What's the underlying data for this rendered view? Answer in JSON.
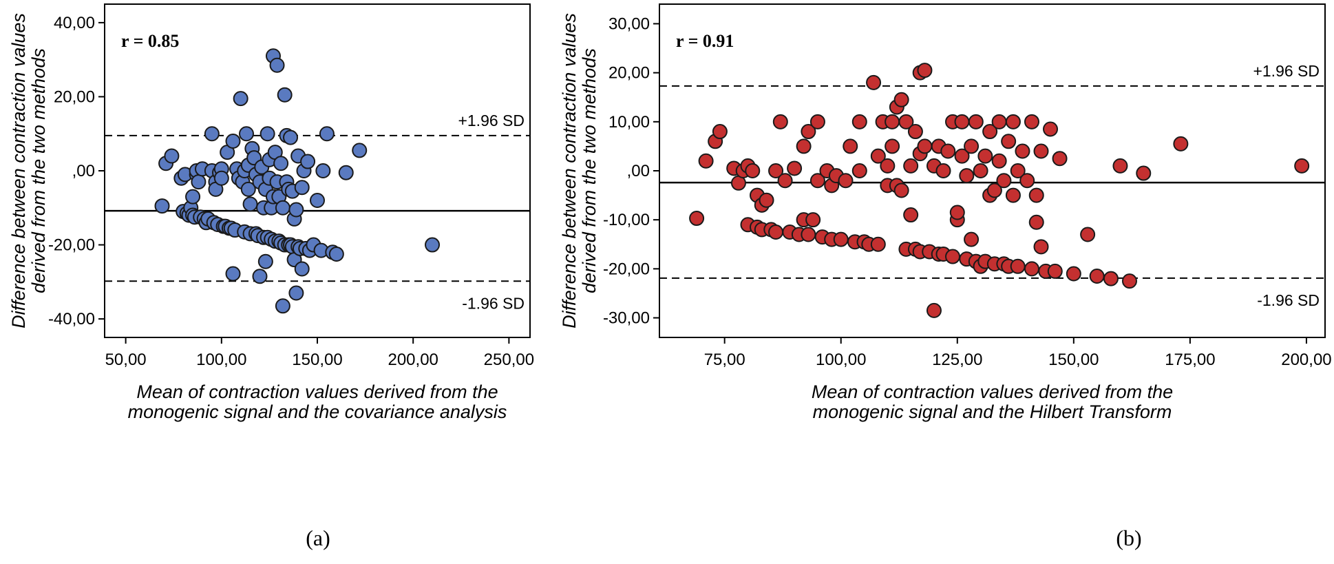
{
  "chart_data": [
    {
      "type": "scatter",
      "title": "",
      "annotation": "r = 0.85",
      "xlabel_lines": [
        "Mean of contraction values derived from the",
        "monogenic signal and the covariance analysis"
      ],
      "ylabel_lines": [
        "Difference between contraction values",
        "derived from the two methods"
      ],
      "xlim": [
        39,
        261
      ],
      "ylim": [
        -45,
        45
      ],
      "xticks": [
        50,
        100,
        150,
        200,
        250
      ],
      "xtick_labels": [
        "50,00",
        "100,00",
        "150,00",
        "200,00",
        "250,00"
      ],
      "yticks": [
        40,
        20,
        0,
        -20,
        -40
      ],
      "ytick_labels": [
        "40,00",
        "20,00",
        ",00",
        "-20,00",
        "-40,00"
      ],
      "mean_line": -10.8,
      "upper_limit": 9.5,
      "lower_limit": -29.8,
      "upper_label": "+1.96 SD",
      "lower_label": "-1.96 SD",
      "marker_color": "#5a7ac0",
      "caption": "(a)",
      "points": [
        [
          69,
          -9.5
        ],
        [
          71,
          2
        ],
        [
          74,
          4
        ],
        [
          79,
          -2
        ],
        [
          80,
          -11
        ],
        [
          81,
          -1
        ],
        [
          82,
          -11.5
        ],
        [
          83,
          -12
        ],
        [
          84,
          -10
        ],
        [
          85,
          -7
        ],
        [
          85,
          -12
        ],
        [
          86,
          -12.5
        ],
        [
          87,
          -1
        ],
        [
          87,
          0
        ],
        [
          88,
          -3
        ],
        [
          89,
          -12.5
        ],
        [
          90,
          0.5
        ],
        [
          91,
          -13
        ],
        [
          92,
          -14
        ],
        [
          93,
          -13
        ],
        [
          95,
          10
        ],
        [
          95,
          0
        ],
        [
          96,
          -14
        ],
        [
          97,
          -3
        ],
        [
          97,
          -5
        ],
        [
          98,
          -14.5
        ],
        [
          99,
          -0.5
        ],
        [
          100,
          0.5
        ],
        [
          100,
          -2
        ],
        [
          101,
          -15
        ],
        [
          102,
          -15
        ],
        [
          103,
          5
        ],
        [
          104,
          -15.5
        ],
        [
          105,
          -15.5
        ],
        [
          106,
          -27.8
        ],
        [
          106,
          8
        ],
        [
          107,
          -16
        ],
        [
          108,
          0.5
        ],
        [
          109,
          -2
        ],
        [
          110,
          19.5
        ],
        [
          111,
          -3
        ],
        [
          112,
          -16.5
        ],
        [
          112,
          0
        ],
        [
          113,
          10
        ],
        [
          114,
          -5
        ],
        [
          114,
          1.5
        ],
        [
          115,
          -17
        ],
        [
          115,
          -9
        ],
        [
          116,
          6
        ],
        [
          117,
          3.5
        ],
        [
          118,
          -17
        ],
        [
          118,
          -1
        ],
        [
          119,
          -17.5
        ],
        [
          120,
          -28.5
        ],
        [
          120,
          -3
        ],
        [
          121,
          1
        ],
        [
          122,
          -18
        ],
        [
          122,
          -10
        ],
        [
          123,
          -24.5
        ],
        [
          123,
          -5
        ],
        [
          124,
          10
        ],
        [
          124,
          -18
        ],
        [
          125,
          3
        ],
        [
          125,
          -2
        ],
        [
          126,
          -18.5
        ],
        [
          126,
          -10
        ],
        [
          127,
          -7
        ],
        [
          127,
          31
        ],
        [
          128,
          -19
        ],
        [
          128,
          5
        ],
        [
          129,
          28.5
        ],
        [
          129,
          -3
        ],
        [
          130,
          -19
        ],
        [
          130,
          -7
        ],
        [
          131,
          -19.5
        ],
        [
          131,
          2
        ],
        [
          132,
          -36.5
        ],
        [
          132,
          -10
        ],
        [
          133,
          20.5
        ],
        [
          133,
          -20
        ],
        [
          134,
          9.5
        ],
        [
          134,
          -3
        ],
        [
          135,
          -20
        ],
        [
          135,
          -5
        ],
        [
          136,
          -20
        ],
        [
          136,
          9
        ],
        [
          137,
          -20.5
        ],
        [
          137,
          -5.5
        ],
        [
          138,
          -24
        ],
        [
          138,
          -13
        ],
        [
          139,
          -33
        ],
        [
          139,
          -10.5
        ],
        [
          140,
          -20.5
        ],
        [
          140,
          4
        ],
        [
          141,
          -21
        ],
        [
          142,
          -26.5
        ],
        [
          142,
          -4.5
        ],
        [
          143,
          0
        ],
        [
          144,
          -21
        ],
        [
          145,
          2.5
        ],
        [
          146,
          -21.5
        ],
        [
          148,
          -20
        ],
        [
          150,
          -8
        ],
        [
          152,
          -21.5
        ],
        [
          153,
          0
        ],
        [
          155,
          10
        ],
        [
          158,
          -22
        ],
        [
          160,
          -22.5
        ],
        [
          165,
          -0.5
        ],
        [
          172,
          5.5
        ],
        [
          210,
          -20
        ]
      ]
    },
    {
      "type": "scatter",
      "title": "",
      "annotation": "r = 0.91",
      "xlabel_lines": [
        "Mean of contraction values derived from the",
        "monogenic signal and the Hilbert Transform"
      ],
      "ylabel_lines": [
        "Difference between contraction values",
        "derived from the two methods"
      ],
      "xlim": [
        61,
        204
      ],
      "ylim": [
        -34,
        34
      ],
      "xticks": [
        75,
        100,
        125,
        150,
        175,
        200
      ],
      "xtick_labels": [
        "75,00",
        "100,00",
        "125,00",
        "150,00",
        "175,00",
        "200,00"
      ],
      "yticks": [
        30,
        20,
        10,
        0,
        -10,
        -20,
        -30
      ],
      "ytick_labels": [
        "30,00",
        "20,00",
        "10,00",
        ",00",
        "-10,00",
        "-20,00",
        "-30,00"
      ],
      "mean_line": -2.4,
      "upper_limit": 17.3,
      "lower_limit": -21.9,
      "upper_label": "+1.96 SD",
      "lower_label": "-1.96 SD",
      "marker_color": "#c43030",
      "caption": "(b)",
      "points": [
        [
          69,
          -9.7
        ],
        [
          71,
          2
        ],
        [
          73,
          6
        ],
        [
          74,
          8
        ],
        [
          77,
          0.5
        ],
        [
          78,
          -2.5
        ],
        [
          79,
          0
        ],
        [
          80,
          -11
        ],
        [
          80,
          1
        ],
        [
          81,
          0
        ],
        [
          82,
          -11.5
        ],
        [
          82,
          -5
        ],
        [
          83,
          -7
        ],
        [
          83,
          -12
        ],
        [
          84,
          -6
        ],
        [
          85,
          -12
        ],
        [
          86,
          -12.5
        ],
        [
          86,
          0
        ],
        [
          87,
          10
        ],
        [
          88,
          -2
        ],
        [
          89,
          -12.5
        ],
        [
          90,
          0.5
        ],
        [
          91,
          -13
        ],
        [
          92,
          -10
        ],
        [
          92,
          5
        ],
        [
          93,
          8
        ],
        [
          93,
          -13
        ],
        [
          94,
          -10
        ],
        [
          95,
          10
        ],
        [
          95,
          -2
        ],
        [
          96,
          -13.5
        ],
        [
          97,
          0
        ],
        [
          98,
          -14
        ],
        [
          98,
          -3
        ],
        [
          99,
          -1
        ],
        [
          100,
          -14
        ],
        [
          101,
          -2
        ],
        [
          102,
          5
        ],
        [
          103,
          -14.5
        ],
        [
          104,
          10
        ],
        [
          104,
          0
        ],
        [
          105,
          -14.5
        ],
        [
          106,
          -15
        ],
        [
          107,
          18
        ],
        [
          108,
          -15
        ],
        [
          108,
          3
        ],
        [
          109,
          10
        ],
        [
          110,
          1
        ],
        [
          110,
          -3
        ],
        [
          111,
          10
        ],
        [
          111,
          5
        ],
        [
          112,
          13
        ],
        [
          112,
          -3
        ],
        [
          113,
          14.5
        ],
        [
          113,
          -4
        ],
        [
          114,
          -16
        ],
        [
          114,
          10
        ],
        [
          115,
          -9
        ],
        [
          115,
          1
        ],
        [
          116,
          -16
        ],
        [
          116,
          8
        ],
        [
          117,
          -16.5
        ],
        [
          117,
          20
        ],
        [
          117,
          3.5
        ],
        [
          118,
          20.5
        ],
        [
          118,
          5
        ],
        [
          119,
          -16.5
        ],
        [
          120,
          -28.5
        ],
        [
          120,
          1
        ],
        [
          121,
          -17
        ],
        [
          121,
          5
        ],
        [
          122,
          -17
        ],
        [
          122,
          0
        ],
        [
          123,
          4
        ],
        [
          124,
          -17.5
        ],
        [
          124,
          10
        ],
        [
          125,
          -10
        ],
        [
          125,
          -8.5
        ],
        [
          126,
          10
        ],
        [
          126,
          3
        ],
        [
          127,
          -18
        ],
        [
          127,
          -1
        ],
        [
          128,
          -14
        ],
        [
          128,
          5
        ],
        [
          129,
          -18.5
        ],
        [
          129,
          10
        ],
        [
          130,
          -19.5
        ],
        [
          130,
          0
        ],
        [
          131,
          -18.5
        ],
        [
          131,
          3
        ],
        [
          132,
          -5
        ],
        [
          132,
          8
        ],
        [
          133,
          -19
        ],
        [
          133,
          -4
        ],
        [
          134,
          10
        ],
        [
          134,
          2
        ],
        [
          135,
          -19
        ],
        [
          135,
          -2
        ],
        [
          136,
          -19.5
        ],
        [
          136,
          6
        ],
        [
          137,
          -5
        ],
        [
          137,
          10
        ],
        [
          138,
          -19.5
        ],
        [
          138,
          0
        ],
        [
          139,
          4
        ],
        [
          140,
          -2
        ],
        [
          141,
          -20
        ],
        [
          141,
          10
        ],
        [
          142,
          -10.5
        ],
        [
          142,
          -5
        ],
        [
          143,
          -15.5
        ],
        [
          143,
          4
        ],
        [
          144,
          -20.5
        ],
        [
          145,
          8.5
        ],
        [
          146,
          -20.5
        ],
        [
          147,
          2.5
        ],
        [
          150,
          -21
        ],
        [
          153,
          -13
        ],
        [
          155,
          -21.5
        ],
        [
          158,
          -22
        ],
        [
          160,
          1
        ],
        [
          162,
          -22.5
        ],
        [
          165,
          -0.5
        ],
        [
          173,
          5.5
        ],
        [
          199,
          1
        ]
      ]
    }
  ]
}
